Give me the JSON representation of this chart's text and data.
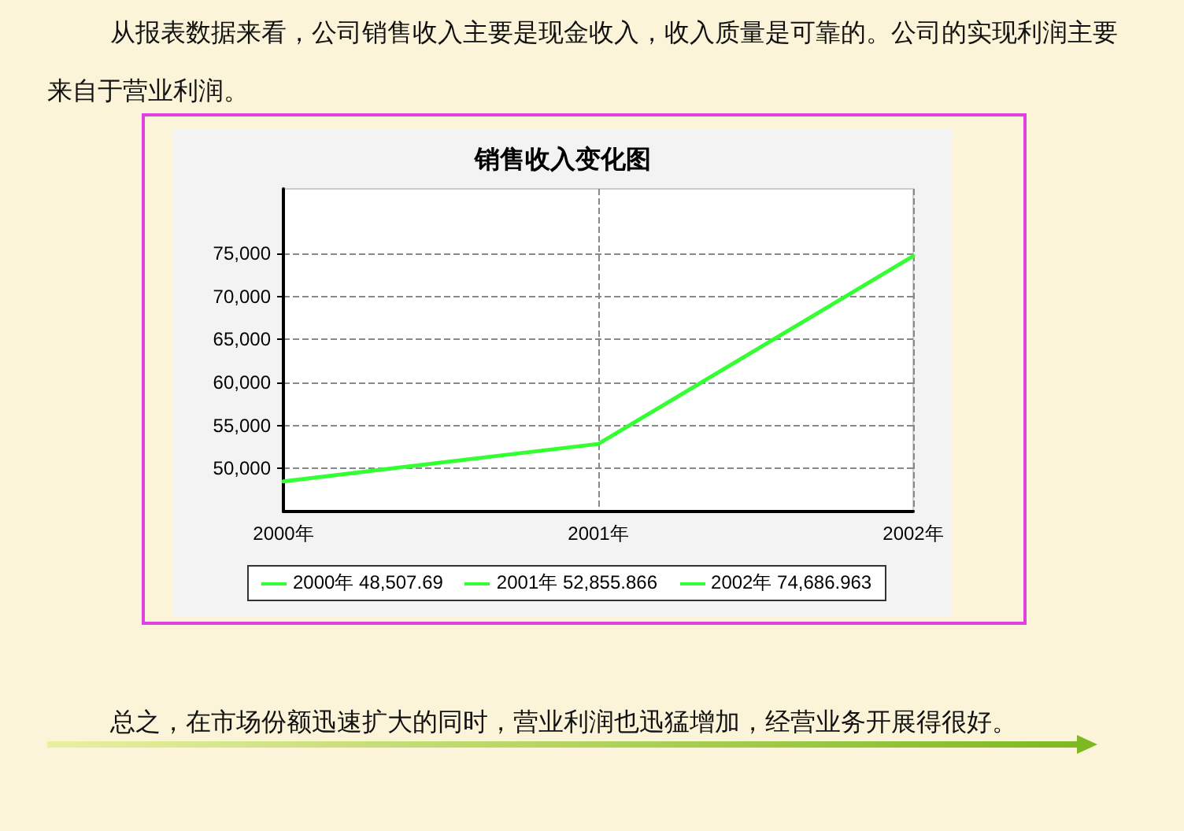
{
  "chart_data": {
    "type": "line",
    "title": "销售收入变化图",
    "annotations": [
      "从报表数据来看，公司销售收入主要是现金收入，收入质量是可靠的。公司的实现利润主要来自于营业利润。",
      "总之，在市场份额迅速扩大的同时，营业利润也迅猛增加，经营业务开展得很好。"
    ],
    "categories": [
      "2000年",
      "2001年",
      "2002年"
    ],
    "series": [
      {
        "color": "#33ff33",
        "values": [
          48507.69,
          52855.866,
          74686.963
        ],
        "value_labels": [
          "2000年 48,507.69",
          "2001年 52,855.866",
          "2002年 74,686.963"
        ]
      }
    ],
    "ylim": [
      45000,
      82500
    ],
    "yticks": [
      {
        "value": 50000,
        "label": "50,000"
      },
      {
        "value": 55000,
        "label": "55,000"
      },
      {
        "value": 60000,
        "label": "60,000"
      },
      {
        "value": 65000,
        "label": "65,000"
      },
      {
        "value": 70000,
        "label": "70,000"
      },
      {
        "value": 75000,
        "label": "75,000"
      }
    ],
    "grid": true,
    "marker": "none",
    "line_style": "solid"
  }
}
